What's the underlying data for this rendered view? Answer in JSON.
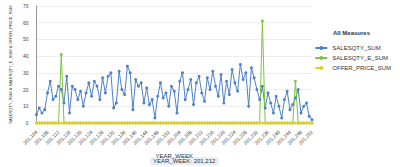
{
  "chart_data": {
    "type": "line",
    "xlabel": "YEAR_WEEK",
    "ylabel": "SALESQTY_SUM & SALESQTY_E_SUM & OFFER_PRICE_SUM",
    "legend_title": "All Measures",
    "annotations": [
      "YEAR_WEEK: 201,212"
    ],
    "categories": [
      "201,104",
      null,
      null,
      null,
      "201,108",
      null,
      null,
      null,
      "201,112",
      null,
      null,
      null,
      "201,116",
      null,
      null,
      null,
      "201,120",
      null,
      null,
      null,
      "201,124",
      null,
      null,
      null,
      "201,128",
      null,
      null,
      null,
      "201,132",
      null,
      null,
      null,
      "201,136",
      null,
      null,
      null,
      "201,140",
      null,
      null,
      null,
      "201,144",
      null,
      null,
      null,
      "201,148",
      null,
      null,
      null,
      "201,152",
      null,
      null,
      null,
      "201,204",
      null,
      null,
      null,
      "201,208",
      null,
      null,
      null,
      "201,212",
      null,
      null,
      null,
      "201,216",
      null,
      null,
      null,
      "201,220",
      null,
      null,
      null,
      "201,224",
      null,
      null,
      null,
      "201,228",
      null,
      null,
      null,
      "201,232",
      null,
      null,
      null,
      "201,236",
      null,
      null,
      null,
      "201,240",
      null,
      null,
      null,
      "201,244",
      null,
      null,
      null,
      "201,248",
      null,
      null,
      null,
      "201,252"
    ],
    "series": [
      {
        "name": "SALESQTY_SUM",
        "color": "#4f81c7",
        "marker": "circle",
        "line_style": "solid",
        "values": [
          5,
          9,
          6,
          8,
          18,
          25,
          14,
          16,
          22,
          20,
          12,
          28,
          6,
          22,
          20,
          14,
          19,
          10,
          18,
          24,
          16,
          25,
          22,
          14,
          27,
          18,
          28,
          30,
          9,
          12,
          31,
          20,
          17,
          34,
          30,
          8,
          26,
          22,
          24,
          12,
          21,
          11,
          14,
          3,
          16,
          24,
          15,
          18,
          10,
          22,
          19,
          6,
          25,
          30,
          14,
          20,
          26,
          11,
          24,
          28,
          18,
          13,
          27,
          20,
          31,
          22,
          16,
          29,
          12,
          25,
          17,
          32,
          24,
          19,
          35,
          26,
          30,
          10,
          33,
          27,
          20,
          14,
          22,
          9,
          18,
          12,
          6,
          16,
          10,
          3,
          14,
          19,
          8,
          11,
          15,
          20,
          6,
          10,
          12,
          4,
          2
        ]
      },
      {
        "name": "SALESQTY_E_SUM",
        "color": "#7ec242",
        "marker": "circle",
        "line_style": "solid",
        "values": [
          0,
          0,
          0,
          0,
          0,
          0,
          0,
          0,
          0,
          41,
          0,
          0,
          0,
          0,
          0,
          0,
          0,
          0,
          0,
          0,
          0,
          0,
          0,
          0,
          0,
          0,
          0,
          0,
          0,
          0,
          0,
          0,
          0,
          0,
          0,
          0,
          0,
          0,
          0,
          0,
          0,
          0,
          0,
          0,
          0,
          0,
          0,
          0,
          0,
          0,
          0,
          0,
          0,
          0,
          0,
          0,
          0,
          0,
          0,
          0,
          0,
          0,
          0,
          0,
          0,
          0,
          0,
          0,
          0,
          0,
          0,
          0,
          0,
          0,
          0,
          0,
          0,
          0,
          0,
          0,
          0,
          0,
          61,
          0,
          0,
          0,
          0,
          0,
          0,
          0,
          0,
          0,
          0,
          0,
          25,
          0,
          0,
          0,
          0,
          0,
          0
        ]
      },
      {
        "name": "OFFER_PRICE_SUM",
        "color": "#e3cf2b",
        "marker": "circle",
        "line_style": "dashed",
        "values": [
          0,
          0,
          0,
          0,
          0,
          0,
          0,
          0,
          0,
          0,
          0,
          0,
          0,
          0,
          0,
          0,
          0,
          0,
          0,
          0,
          0,
          0,
          0,
          0,
          0,
          0,
          0,
          0,
          0,
          0,
          0,
          0,
          0,
          0,
          0,
          0,
          0,
          0,
          0,
          0,
          0,
          0,
          0,
          0,
          0,
          0,
          0,
          0,
          0,
          0,
          0,
          0,
          0,
          0,
          0,
          0,
          0,
          0,
          0,
          0,
          0,
          0,
          0,
          0,
          0,
          0,
          0,
          0,
          0,
          0,
          0,
          0,
          0,
          0,
          0,
          0,
          0,
          0,
          0,
          0,
          0,
          0,
          0,
          0,
          0,
          0,
          0,
          0,
          0,
          0,
          0,
          0,
          0,
          0,
          0,
          0,
          0,
          0,
          0,
          0,
          0
        ]
      }
    ],
    "ylim": [
      0,
      70
    ],
    "yticks": [
      0,
      10,
      20,
      30,
      40,
      50,
      60,
      70
    ],
    "grid": true,
    "legend": "right"
  }
}
